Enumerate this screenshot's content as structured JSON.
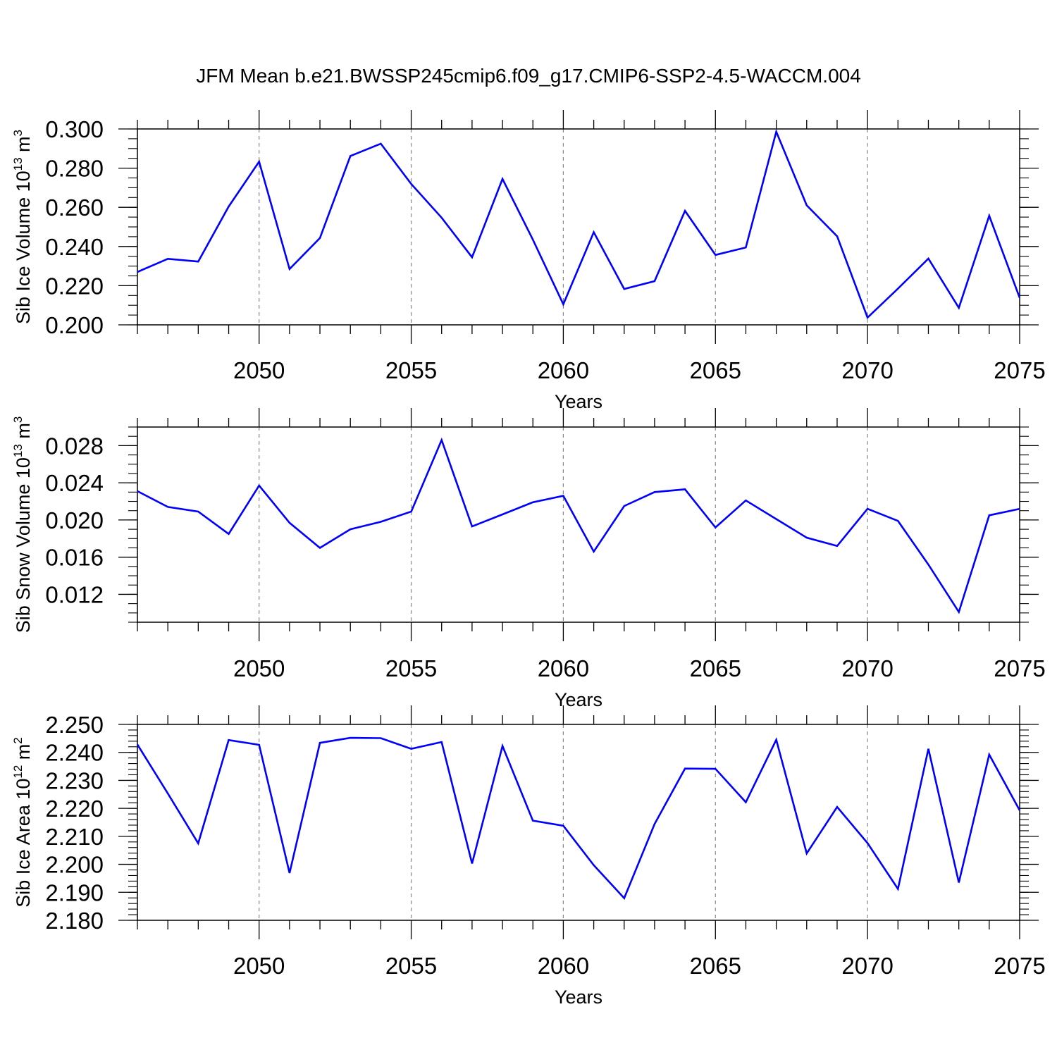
{
  "title": "JFM Mean b.e21.BWSSP245cmip6.f09_g17.CMIP6-SSP2-4.5-WACCM.004",
  "colors": {
    "line": "#0000ff",
    "axis": "#000000",
    "grid": "#888888"
  },
  "chart_data": [
    {
      "type": "line",
      "name": "sib-ice-volume",
      "ylabel": "Sib Ice Volume",
      "yunit_base": "10",
      "yunit_exp": "13",
      "yunit_sym": "m",
      "yunit_sym_exp": "3",
      "xlabel": "Years",
      "xlim": [
        2046,
        2075
      ],
      "ylim": [
        0.2,
        0.3
      ],
      "x_ticks": [
        2050,
        2055,
        2060,
        2065,
        2070,
        2075
      ],
      "x_tick_labels": [
        "2050",
        "2055",
        "2060",
        "2065",
        "2070",
        "2075"
      ],
      "y_ticks": [
        0.2,
        0.22,
        0.24,
        0.26,
        0.28,
        0.3
      ],
      "y_tick_labels": [
        "0.200",
        "0.220",
        "0.240",
        "0.260",
        "0.280",
        "0.300"
      ],
      "y_minor_step": 0.005,
      "grid": "vertical dashed at major x ticks",
      "x": [
        2046,
        2047,
        2048,
        2049,
        2050,
        2051,
        2052,
        2053,
        2054,
        2055,
        2056,
        2057,
        2058,
        2059,
        2060,
        2061,
        2062,
        2063,
        2064,
        2065,
        2066,
        2067,
        2068,
        2069,
        2070,
        2071,
        2072,
        2073,
        2074,
        2075
      ],
      "values": [
        0.227,
        0.2337,
        0.2323,
        0.2604,
        0.2833,
        0.2285,
        0.2443,
        0.2862,
        0.2925,
        0.2719,
        0.2547,
        0.2345,
        0.2745,
        0.2435,
        0.2105,
        0.2473,
        0.2183,
        0.2223,
        0.2582,
        0.2357,
        0.2395,
        0.2986,
        0.261,
        0.2452,
        0.2037,
        0.2185,
        0.2338,
        0.2087,
        0.2557,
        0.2138
      ]
    },
    {
      "type": "line",
      "name": "sib-snow-volume",
      "ylabel": "Sib Snow Volume",
      "yunit_base": "10",
      "yunit_exp": "13",
      "yunit_sym": "m",
      "yunit_sym_exp": "3",
      "xlabel": "Years",
      "xlim": [
        2046,
        2075
      ],
      "ylim": [
        0.009,
        0.03
      ],
      "x_ticks": [
        2050,
        2055,
        2060,
        2065,
        2070,
        2075
      ],
      "x_tick_labels": [
        "2050",
        "2055",
        "2060",
        "2065",
        "2070",
        "2075"
      ],
      "y_ticks": [
        0.012,
        0.016,
        0.02,
        0.024,
        0.028
      ],
      "y_tick_labels": [
        "0.012",
        "0.016",
        "0.020",
        "0.024",
        "0.028"
      ],
      "y_minor_step": 0.001,
      "grid": "vertical dashed at major x ticks",
      "x": [
        2046,
        2047,
        2048,
        2049,
        2050,
        2051,
        2052,
        2053,
        2054,
        2055,
        2056,
        2057,
        2058,
        2059,
        2060,
        2061,
        2062,
        2063,
        2064,
        2065,
        2066,
        2067,
        2068,
        2069,
        2070,
        2071,
        2072,
        2073,
        2074,
        2075
      ],
      "values": [
        0.0231,
        0.0214,
        0.0209,
        0.0185,
        0.0237,
        0.0197,
        0.017,
        0.019,
        0.0198,
        0.0209,
        0.0286,
        0.0193,
        0.0206,
        0.0219,
        0.0226,
        0.0166,
        0.0215,
        0.023,
        0.0233,
        0.0192,
        0.0221,
        0.0201,
        0.0181,
        0.0172,
        0.0212,
        0.0199,
        0.0152,
        0.0101,
        0.0205,
        0.0212
      ]
    },
    {
      "type": "line",
      "name": "sib-ice-area",
      "ylabel": "Sib Ice Area",
      "yunit_base": "10",
      "yunit_exp": "12",
      "yunit_sym": "m",
      "yunit_sym_exp": "2",
      "xlabel": "Years",
      "xlim": [
        2046,
        2075
      ],
      "ylim": [
        2.18,
        2.25
      ],
      "x_ticks": [
        2050,
        2055,
        2060,
        2065,
        2070,
        2075
      ],
      "x_tick_labels": [
        "2050",
        "2055",
        "2060",
        "2065",
        "2070",
        "2075"
      ],
      "y_ticks": [
        2.18,
        2.19,
        2.2,
        2.21,
        2.22,
        2.23,
        2.24,
        2.25
      ],
      "y_tick_labels": [
        "2.180",
        "2.190",
        "2.200",
        "2.210",
        "2.220",
        "2.230",
        "2.240",
        "2.250"
      ],
      "y_minor_step": 0.002,
      "grid": "vertical dashed at major x ticks",
      "x": [
        2046,
        2047,
        2048,
        2049,
        2050,
        2051,
        2052,
        2053,
        2054,
        2055,
        2056,
        2057,
        2058,
        2059,
        2060,
        2061,
        2062,
        2063,
        2064,
        2065,
        2066,
        2067,
        2068,
        2069,
        2070,
        2071,
        2072,
        2073,
        2074,
        2075
      ],
      "values": [
        2.2428,
        2.2253,
        2.2075,
        2.2444,
        2.2427,
        2.1969,
        2.2434,
        2.2452,
        2.2451,
        2.2413,
        2.2437,
        2.2003,
        2.2423,
        2.2156,
        2.2138,
        2.1997,
        2.1879,
        2.2144,
        2.2342,
        2.2341,
        2.2222,
        2.2445,
        2.2039,
        2.2205,
        2.2076,
        2.1912,
        2.2413,
        2.1935,
        2.2392,
        2.2193
      ]
    }
  ]
}
